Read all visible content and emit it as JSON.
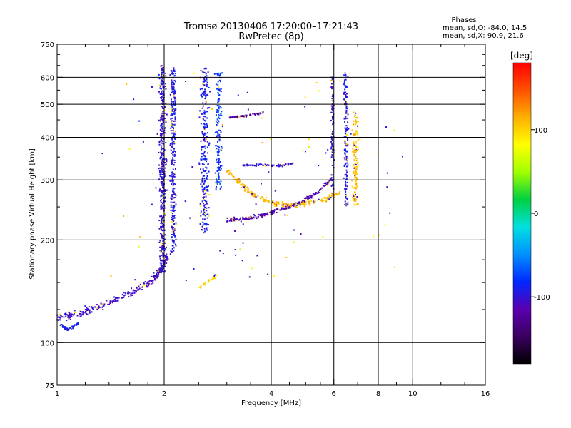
{
  "chart_data": {
    "type": "scatter",
    "title": "Tromsø 20130406 17:20:00–17:21:43",
    "subtitle": "RwPretec (8p)",
    "stats": {
      "heading": "Phases",
      "line1": "mean, sd,O: -84.0, 14.5",
      "line2": "mean, sd,X:  90.9, 21.6"
    },
    "xlabel": "Frequency [MHz]",
    "ylabel": "Stationary phase Virtual Height [km]",
    "x_scale": "log",
    "y_scale": "log",
    "xlim": [
      1,
      16
    ],
    "ylim": [
      75,
      750
    ],
    "x_ticks": [
      1,
      2,
      4,
      6,
      8,
      10,
      16
    ],
    "x_tick_labels": [
      "1",
      "2",
      "4",
      "6",
      "8",
      "10",
      "16"
    ],
    "x_gridlines": [
      2,
      4,
      6,
      8,
      10
    ],
    "x_minor_ticks": [
      1.2,
      1.4,
      1.6,
      1.8,
      2.5,
      3,
      3.5,
      4.5,
      5,
      5.5,
      7,
      9,
      12,
      14
    ],
    "y_ticks": [
      75,
      100,
      200,
      300,
      400,
      500,
      600,
      750
    ],
    "y_tick_labels": [
      "75",
      "100",
      "200",
      "300",
      "400",
      "500",
      "600",
      "750"
    ],
    "y_gridlines": [
      100,
      200,
      300,
      400,
      500,
      600
    ],
    "y_minor_ticks": [
      125,
      150,
      175,
      250,
      350,
      450,
      550,
      650,
      700
    ],
    "grid": true,
    "colorbar": {
      "label": "[deg]",
      "range": [
        -180,
        180
      ],
      "ticks": [
        100,
        0,
        -100
      ],
      "tick_labels": [
        "100",
        "0",
        "-100"
      ],
      "colors": [
        "#000000",
        "#3a0060",
        "#5a00b0",
        "#0028ff",
        "#0090ff",
        "#00e0e0",
        "#00d040",
        "#a0ff00",
        "#ffff00",
        "#ffb000",
        "#ff5000",
        "#ff0000"
      ]
    },
    "series": [
      {
        "kind": "band",
        "x": [
          1.0,
          1.1,
          1.25,
          1.45,
          1.65,
          1.85,
          1.95,
          2.05
        ],
        "y": [
          118,
          120,
          125,
          133,
          141,
          152,
          163,
          180
        ],
        "spread": 0.035,
        "n": 260,
        "phase": -105
      },
      {
        "kind": "band",
        "x": [
          1.02,
          1.07,
          1.15
        ],
        "y": [
          113,
          109,
          114
        ],
        "spread": 0.012,
        "n": 60,
        "phase": -90
      },
      {
        "kind": "vband",
        "x": [
          1.98
        ],
        "y_range": [
          160,
          650
        ],
        "spread_x": 0.03,
        "n": 420,
        "phase": -100
      },
      {
        "kind": "vband",
        "x": [
          2.12
        ],
        "y_range": [
          180,
          640
        ],
        "spread_x": 0.025,
        "n": 300,
        "phase": -95
      },
      {
        "kind": "vband",
        "x": [
          2.6
        ],
        "y_range": [
          210,
          640
        ],
        "spread_x": 0.04,
        "n": 260,
        "phase": -92
      },
      {
        "kind": "vband",
        "x": [
          2.85
        ],
        "y_range": [
          280,
          620
        ],
        "spread_x": 0.03,
        "n": 150,
        "phase": -80
      },
      {
        "kind": "band",
        "x": [
          3.05,
          3.4,
          3.8
        ],
        "y": [
          458,
          462,
          472
        ],
        "spread": 0.01,
        "n": 60,
        "phase": -125
      },
      {
        "kind": "band",
        "x": [
          3.0,
          3.5,
          4.0,
          4.6,
          5.3,
          5.9
        ],
        "y": [
          228,
          232,
          240,
          252,
          272,
          300
        ],
        "spread": 0.02,
        "n": 200,
        "phase": -115
      },
      {
        "kind": "band",
        "x": [
          3.0,
          3.3,
          3.6,
          4.0,
          4.5,
          5.0,
          5.6,
          6.2
        ],
        "y": [
          320,
          290,
          270,
          258,
          252,
          255,
          262,
          275
        ],
        "spread": 0.025,
        "n": 220,
        "phase": 110
      },
      {
        "kind": "band",
        "x": [
          3.3,
          3.7,
          4.2,
          4.6
        ],
        "y": [
          330,
          332,
          330,
          335
        ],
        "spread": 0.012,
        "n": 70,
        "phase": -100
      },
      {
        "kind": "vband",
        "x": [
          5.95
        ],
        "y_range": [
          280,
          600
        ],
        "spread_x": 0.015,
        "n": 90,
        "phase": -100
      },
      {
        "kind": "vband",
        "x": [
          6.5
        ],
        "y_range": [
          250,
          620
        ],
        "spread_x": 0.02,
        "n": 150,
        "phase": -95
      },
      {
        "kind": "vband",
        "x": [
          6.9
        ],
        "y_range": [
          250,
          480
        ],
        "spread_x": 0.025,
        "n": 130,
        "phase": 105
      },
      {
        "kind": "band",
        "x": [
          2.5,
          2.65,
          2.8
        ],
        "y": [
          145,
          150,
          158
        ],
        "spread": 0.015,
        "n": 25,
        "phase": 95
      },
      {
        "kind": "scatter",
        "x_range": [
          1.3,
          9.5
        ],
        "y_range": [
          150,
          620
        ],
        "n": 90,
        "phase": 90
      }
    ]
  }
}
